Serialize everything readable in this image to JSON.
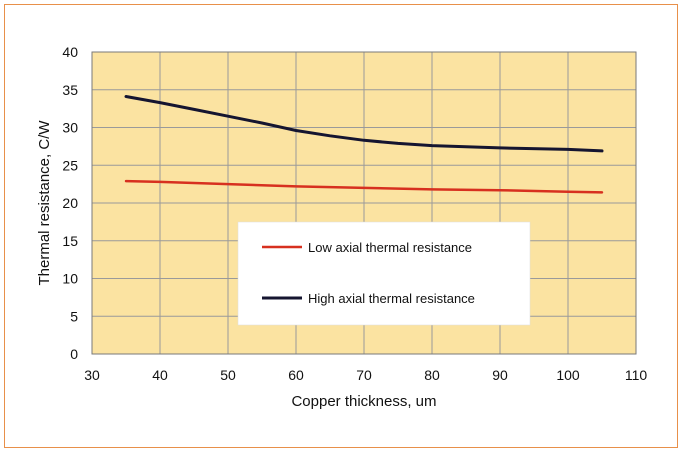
{
  "chart_data": {
    "type": "line",
    "title": "",
    "xlabel": "Copper thickness, um",
    "ylabel": "Thermal resistance, C/W",
    "xlim": [
      30,
      110
    ],
    "ylim": [
      0,
      40
    ],
    "xticks": [
      30,
      40,
      50,
      60,
      70,
      80,
      90,
      100,
      110
    ],
    "yticks": [
      0,
      5,
      10,
      15,
      20,
      25,
      30,
      35,
      40
    ],
    "grid": true,
    "legend_position": "center-right",
    "plot_background": "#fbe3a1",
    "series": [
      {
        "name": "Low axial thermal resistance",
        "color": "#d7301f",
        "x": [
          35,
          40,
          50,
          60,
          70,
          80,
          90,
          100,
          105
        ],
        "y": [
          22.9,
          22.8,
          22.5,
          22.2,
          22.0,
          21.8,
          21.7,
          21.5,
          21.4
        ]
      },
      {
        "name": "High axial thermal resistance",
        "color": "#151530",
        "x": [
          35,
          40,
          45,
          50,
          55,
          60,
          65,
          70,
          75,
          80,
          90,
          100,
          105
        ],
        "y": [
          34.1,
          33.3,
          32.4,
          31.5,
          30.6,
          29.6,
          28.9,
          28.3,
          27.9,
          27.6,
          27.3,
          27.1,
          26.9
        ]
      }
    ]
  }
}
